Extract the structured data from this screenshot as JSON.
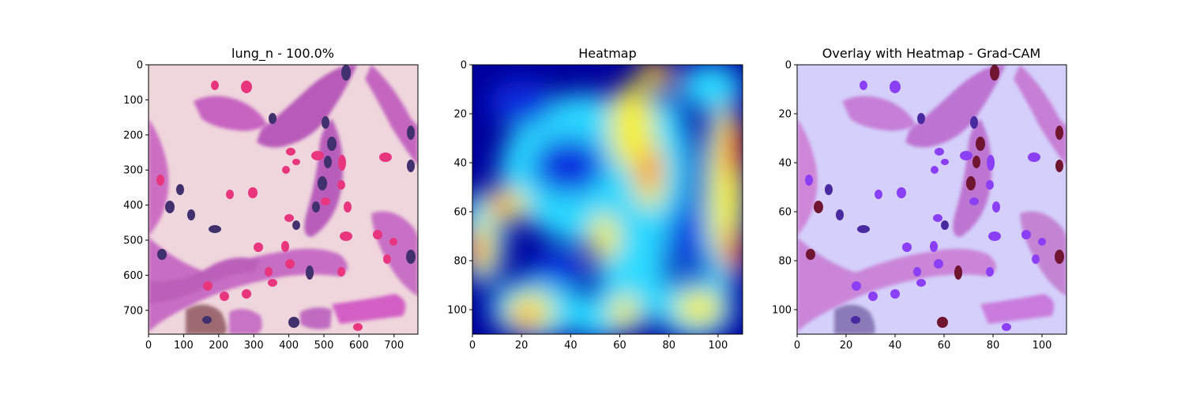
{
  "chart_data": [
    {
      "type": "heatmap",
      "title": "lung_n - 100.0%",
      "content": "H&E stained lung tissue micrograph",
      "xlim": [
        0,
        768
      ],
      "ylim": [
        768,
        0
      ],
      "xticks": [
        0,
        100,
        200,
        300,
        400,
        500,
        600,
        700
      ],
      "yticks": [
        0,
        100,
        200,
        300,
        400,
        500,
        600,
        700
      ],
      "colors": {
        "background": "#efd6dc",
        "tissue": "#c35fbd",
        "nuclei": "#40306e",
        "rbc": "#e8357e"
      }
    },
    {
      "type": "heatmap",
      "title": "Heatmap",
      "colormap": "jet",
      "xlim": [
        0,
        110
      ],
      "ylim": [
        110,
        0
      ],
      "xticks": [
        0,
        20,
        40,
        60,
        80,
        100
      ],
      "yticks": [
        0,
        20,
        40,
        60,
        80,
        100
      ],
      "colors": {
        "low": "#00008f",
        "mid": "#22e5ff",
        "high": "#ff0000"
      }
    },
    {
      "type": "heatmap",
      "title": "Overlay with Heatmap - Grad-CAM",
      "content": "tissue image blended with Grad-CAM heatmap",
      "xlim": [
        0,
        110
      ],
      "ylim": [
        110,
        0
      ],
      "xticks": [
        0,
        20,
        40,
        60,
        80,
        100
      ],
      "yticks": [
        0,
        20,
        40,
        60,
        80,
        100
      ],
      "colors": {
        "background": "#d4d0fb",
        "tissue": "#c47ad6",
        "nuclei": "#6f1530",
        "rbc": "#8b3ff4"
      }
    }
  ]
}
